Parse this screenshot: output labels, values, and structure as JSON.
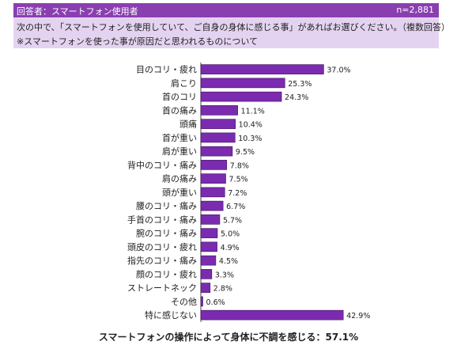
{
  "header": {
    "respondent": "回答者：スマートフォン使用者",
    "n": "n=2,881"
  },
  "question": {
    "line1": "次の中で、「スマートフォンを使用していて、ご自身の身体に感じる事」があればお選びください。（複数回答）",
    "line2": "※スマートフォンを使った事が原因だと思われるものについて"
  },
  "chart_data": {
    "type": "bar",
    "orientation": "horizontal",
    "categories": [
      "目のコリ・疲れ",
      "肩こり",
      "首のコリ",
      "首の痛み",
      "頭痛",
      "首が重い",
      "肩が重い",
      "背中のコリ・痛み",
      "肩の痛み",
      "頭が重い",
      "腰のコリ・痛み",
      "手首のコリ・痛み",
      "腕のコリ・痛み",
      "頭皮のコリ・疲れ",
      "指先のコリ・痛み",
      "顔のコリ・疲れ",
      "ストレートネック",
      "その他",
      "特に感じない"
    ],
    "values": [
      37.0,
      25.3,
      24.3,
      11.1,
      10.4,
      10.3,
      9.5,
      7.8,
      7.5,
      7.2,
      6.7,
      5.7,
      5.0,
      4.9,
      4.5,
      3.3,
      2.8,
      0.6,
      42.9
    ],
    "value_labels": [
      "37.0%",
      "25.3%",
      "24.3%",
      "11.1%",
      "10.4%",
      "10.3%",
      "9.5%",
      "7.8%",
      "7.5%",
      "7.2%",
      "6.7%",
      "5.7%",
      "5.0%",
      "4.9%",
      "4.5%",
      "3.3%",
      "2.8%",
      "0.6%",
      "42.9%"
    ],
    "xlim": [
      0,
      50
    ],
    "grid": false,
    "bar_color": "#7b2bb0"
  },
  "footer": {
    "summary": "スマートフォンの操作によって身体に不調を感じる：57.1%"
  }
}
